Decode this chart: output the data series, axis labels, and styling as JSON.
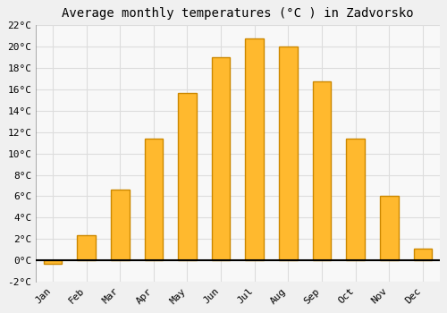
{
  "title": "Average monthly temperatures (°C ) in Zadvorsko",
  "months": [
    "Jan",
    "Feb",
    "Mar",
    "Apr",
    "May",
    "Jun",
    "Jul",
    "Aug",
    "Sep",
    "Oct",
    "Nov",
    "Dec"
  ],
  "values": [
    -0.3,
    2.4,
    6.6,
    11.4,
    15.6,
    19.0,
    20.7,
    20.0,
    16.7,
    11.4,
    6.0,
    1.1
  ],
  "bar_color": "#FFB92E",
  "bar_edge_color": "#CC8800",
  "ylim": [
    -2,
    22
  ],
  "yticks": [
    -2,
    0,
    2,
    4,
    6,
    8,
    10,
    12,
    14,
    16,
    18,
    20,
    22
  ],
  "background_color": "#f0f0f0",
  "plot_bg_color": "#f8f8f8",
  "grid_color": "#dddddd",
  "title_fontsize": 10,
  "tick_fontsize": 8,
  "font_family": "monospace",
  "bar_width": 0.55
}
